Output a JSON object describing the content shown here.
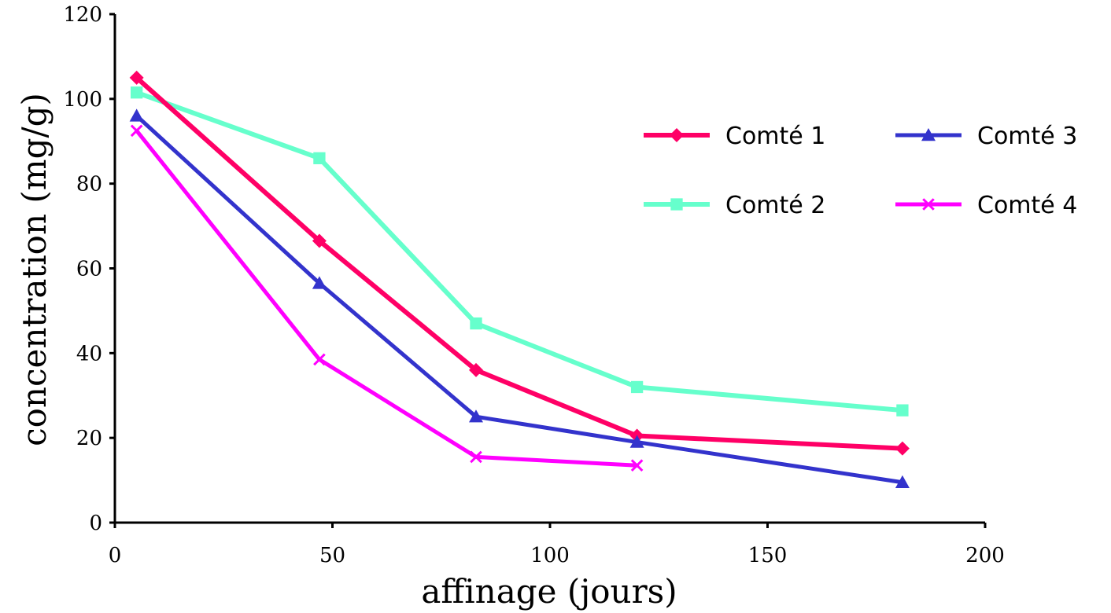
{
  "chart_data": {
    "type": "line",
    "title": "",
    "xlabel": "affinage (jours)",
    "ylabel": "concentration (mg/g)",
    "xlim": [
      0,
      200
    ],
    "ylim": [
      0,
      120
    ],
    "x_ticks": [
      0,
      50,
      100,
      150,
      200
    ],
    "y_ticks": [
      0,
      20,
      40,
      60,
      80,
      100,
      120
    ],
    "grid": false,
    "legend_position": "top-right",
    "series": [
      {
        "name": "Comté 1",
        "color": "#ff0066",
        "marker": "diamond",
        "x": [
          5,
          47,
          83,
          120,
          181
        ],
        "y": [
          105,
          66.5,
          36,
          20.5,
          17.5
        ]
      },
      {
        "name": "Comté 2",
        "color": "#66ffcc",
        "marker": "square",
        "x": [
          5,
          47,
          83,
          120,
          181
        ],
        "y": [
          101.5,
          86,
          47,
          32,
          26.5
        ]
      },
      {
        "name": "Comté 3",
        "color": "#3333cc",
        "marker": "triangle",
        "x": [
          5,
          47,
          83,
          120,
          181
        ],
        "y": [
          96,
          56.5,
          25,
          19,
          9.5
        ]
      },
      {
        "name": "Comté 4",
        "color": "#ff00ff",
        "marker": "x",
        "x": [
          5,
          47,
          83,
          120
        ],
        "y": [
          92.5,
          38.5,
          15.5,
          13.5
        ]
      }
    ]
  }
}
